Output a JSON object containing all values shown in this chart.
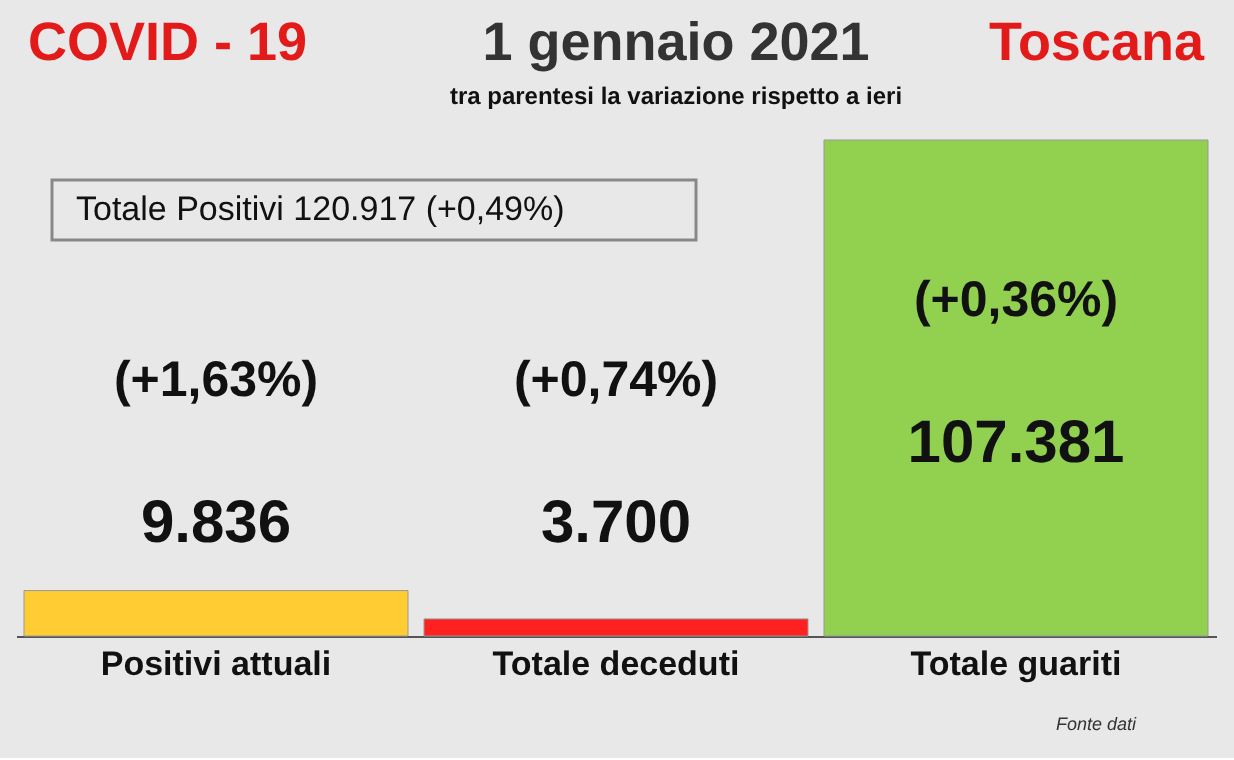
{
  "chart_data": {
    "type": "bar",
    "title": "1 gennaio 2021",
    "subtitle": "tra parentesi la variazione rispetto a ieri",
    "categories": [
      "Positivi attuali",
      "Totale deceduti",
      "Totale guariti"
    ],
    "values": [
      9836,
      3700,
      107381
    ],
    "value_labels": [
      "9.836",
      "3.700",
      "107.381"
    ],
    "colors": [
      "#ffcc33",
      "#ff2020",
      "#92d050"
    ],
    "annotations": [
      "COVID - 19",
      "Toscana",
      "Totale Positivi     120.917 (+0,49%)",
      "(+1,63%)",
      "(+0,74%)",
      "(+0,36%)",
      "Fonte dati"
    ],
    "grid": false,
    "legend": false
  }
}
